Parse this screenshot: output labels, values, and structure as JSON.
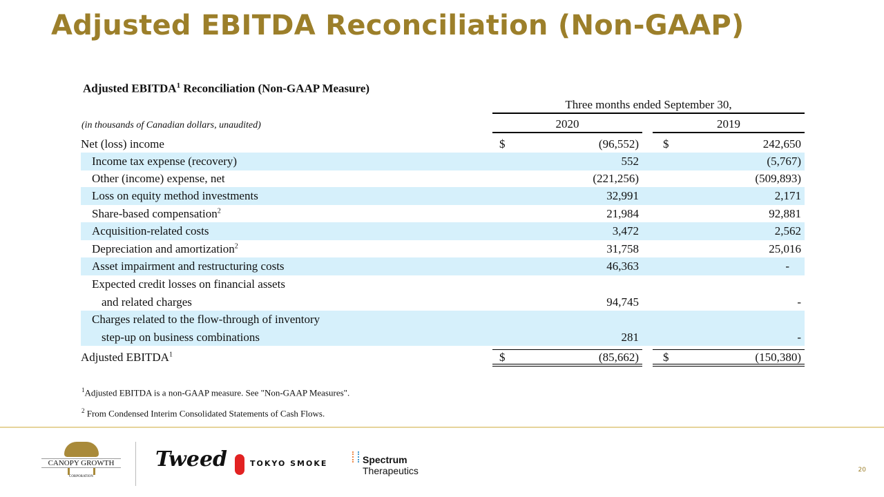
{
  "title": "Adjusted EBITDA Reconciliation (Non-GAAP)",
  "subtitle": {
    "a": "Adjusted EBITDA",
    "sup": "1",
    "b": " Reconciliation (Non-GAAP Measure)"
  },
  "units": "(in thousands of Canadian dollars, unaudited)",
  "period": "Three months ended September 30,",
  "years": [
    "2020",
    "2019"
  ],
  "currency": "$",
  "rows": [
    {
      "label": "Net (loss) income",
      "v2020": "(96,552)",
      "v2019": "242,650"
    },
    {
      "label": "Income tax expense (recovery)",
      "v2020": "552",
      "v2019": "(5,767)"
    },
    {
      "label": "Other (income) expense, net",
      "v2020": "(221,256)",
      "v2019": "(509,893)"
    },
    {
      "label": "Loss on equity method investments",
      "v2020": "32,991",
      "v2019": "2,171"
    },
    {
      "label": "Share-based compensation",
      "sup": "2",
      "v2020": "21,984",
      "v2019": "92,881"
    },
    {
      "label": "Acquisition-related costs",
      "v2020": "3,472",
      "v2019": "2,562"
    },
    {
      "label": "Depreciation and amortization",
      "sup": "2",
      "v2020": "31,758",
      "v2019": "25,016"
    },
    {
      "label": "Asset impairment and restructuring costs",
      "v2020": "46,363",
      "v2019": "-"
    },
    {
      "label": "Expected credit losses on financial assets",
      "label2": "and related charges",
      "v2020": "94,745",
      "v2019": "-"
    },
    {
      "label": "Charges related to the flow-through of inventory",
      "label2": "step-up on business combinations",
      "v2020": "281",
      "v2019": "-"
    },
    {
      "label": "Adjusted EBITDA",
      "sup": "1",
      "v2020": "(85,662)",
      "v2019": "(150,380)"
    }
  ],
  "footnotes": [
    {
      "sup": "1",
      "text": "Adjusted EBITDA is a non-GAAP measure. See \"Non-GAAP Measures\"."
    },
    {
      "sup": "2",
      "text": " From Condensed Interim Consolidated Statements of Cash Flows."
    }
  ],
  "logos": {
    "canopy": "CANOPY GROWTH",
    "canopy_sub": "CORPORATION",
    "tweed": "Tweed",
    "tokyo": "TOKYO SMOKE",
    "spectrum1": "Spectrum",
    "spectrum2": "Therapeutics"
  },
  "page": "20"
}
